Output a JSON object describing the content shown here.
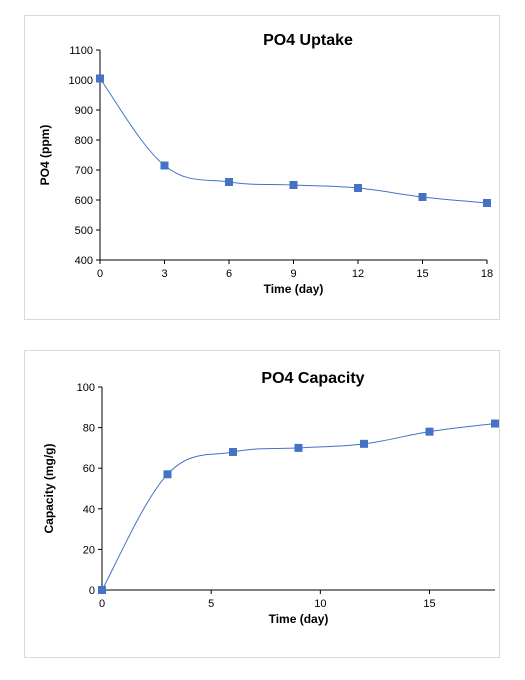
{
  "chart_data": [
    {
      "type": "scatter",
      "title": "PO4 Uptake",
      "xlabel": "Time (day)",
      "ylabel": "PO4 (ppm)",
      "xlim": [
        0,
        18
      ],
      "ylim": [
        400,
        1100
      ],
      "xticks": [
        0,
        3,
        6,
        9,
        12,
        15,
        18
      ],
      "yticks": [
        400,
        500,
        600,
        700,
        800,
        900,
        1000,
        1100
      ],
      "grid": false,
      "smooth_line": true,
      "colors": {
        "marker": "#4472c4",
        "line": "#4472c4"
      },
      "series": [
        {
          "x": [
            0,
            3,
            6,
            9,
            12,
            15,
            18
          ],
          "y": [
            1005,
            715,
            660,
            650,
            640,
            610,
            590
          ]
        }
      ]
    },
    {
      "type": "scatter",
      "title": "PO4 Capacity",
      "xlabel": "Time (day)",
      "ylabel": "Capacity (mg/g)",
      "xlim": [
        0,
        18
      ],
      "ylim": [
        0,
        100
      ],
      "xticks": [
        0,
        5,
        10,
        15
      ],
      "yticks": [
        0,
        20,
        40,
        60,
        80,
        100
      ],
      "grid": false,
      "smooth_line": true,
      "colors": {
        "marker": "#4472c4",
        "line": "#4472c4"
      },
      "series": [
        {
          "x": [
            0,
            3,
            6,
            9,
            12,
            15,
            18
          ],
          "y": [
            0,
            57,
            68,
            70,
            72,
            78,
            82
          ]
        }
      ]
    }
  ]
}
